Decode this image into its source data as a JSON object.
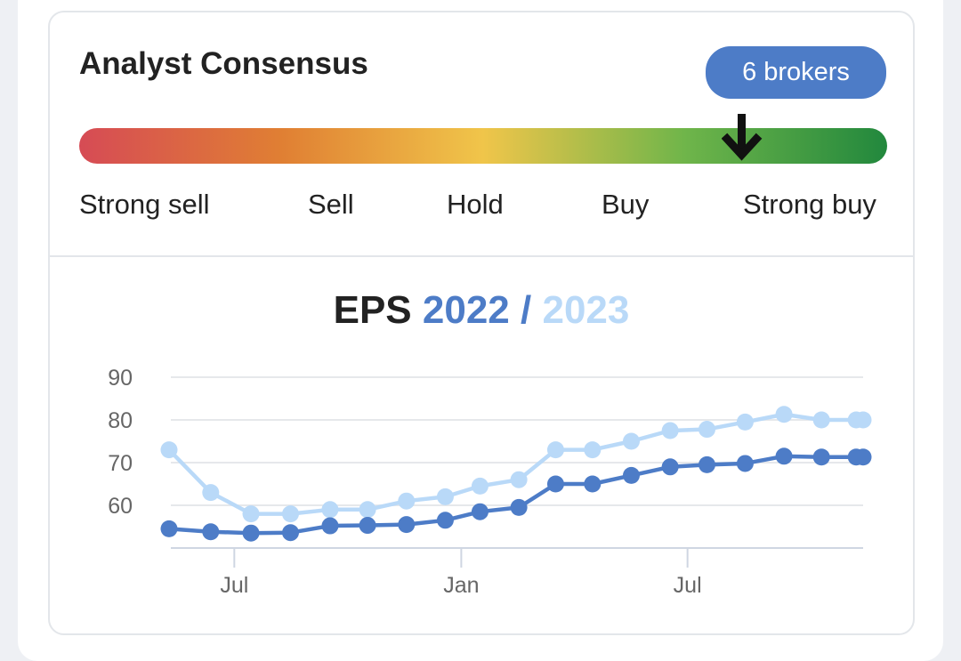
{
  "consensus": {
    "title": "Analyst Consensus",
    "brokers_count": "6",
    "brokers_label": "brokers",
    "scale": [
      "Strong sell",
      "Sell",
      "Hold",
      "Buy",
      "Strong buy"
    ],
    "position": 0.82,
    "colors": [
      "#d64b55",
      "#e07f33",
      "#f0c54a",
      "#6fb54a",
      "#22883d"
    ]
  },
  "eps": {
    "label": "EPS",
    "year1": "2022",
    "separator": "/",
    "year2": "2023"
  },
  "chart_data": {
    "type": "line",
    "title": "EPS 2022 / 2023",
    "ylim": [
      50,
      90
    ],
    "yticks": [
      60,
      70,
      80,
      90
    ],
    "xtick_labels": [
      "Jul",
      "Jan",
      "Jul"
    ],
    "grid": true,
    "series": [
      {
        "name": "2022",
        "color": "#4d7cc7",
        "values": [
          54.5,
          53.8,
          53.5,
          53.6,
          55.2,
          55.3,
          55.5,
          56.5,
          58.5,
          59.5,
          65,
          65,
          67,
          69,
          69.5,
          69.8,
          71.5,
          71.3,
          71.3,
          71.3
        ]
      },
      {
        "name": "2023",
        "color": "#b9d9f8",
        "values": [
          73,
          63,
          58,
          58,
          59,
          59,
          61,
          62,
          64.5,
          66,
          73,
          73,
          75,
          77.5,
          77.8,
          79.5,
          81.3,
          80,
          80,
          80
        ]
      }
    ],
    "x_fractions": [
      0.0,
      0.06,
      0.118,
      0.175,
      0.232,
      0.286,
      0.342,
      0.398,
      0.448,
      0.504,
      0.557,
      0.61,
      0.666,
      0.722,
      0.775,
      0.83,
      0.886,
      0.94,
      0.99,
      1.0
    ],
    "x_tick_fractions": [
      0.094,
      0.421,
      0.747
    ]
  }
}
